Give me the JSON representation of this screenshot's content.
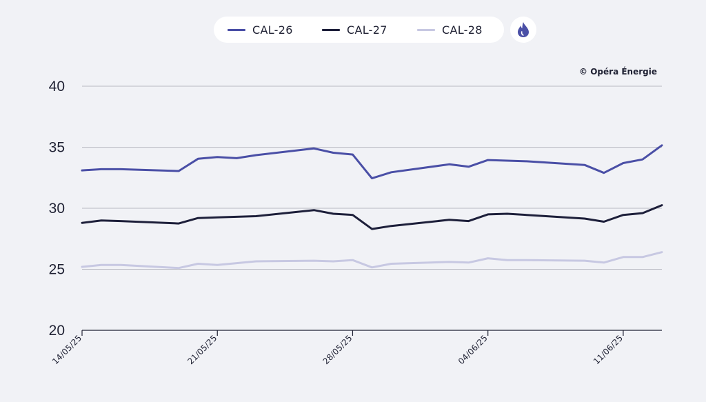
{
  "legend": {
    "items": [
      {
        "label": "CAL-26",
        "color": "#4a4fa6"
      },
      {
        "label": "CAL-27",
        "color": "#1d1f3a"
      },
      {
        "label": "CAL-28",
        "color": "#c7c8e2"
      }
    ],
    "fuel_icon": "flame-icon"
  },
  "copyright": "© Opéra Énergie",
  "chart_data": {
    "type": "line",
    "x": [
      "14/05/25",
      "15/05/25",
      "16/05/25",
      "19/05/25",
      "20/05/25",
      "21/05/25",
      "22/05/25",
      "23/05/25",
      "26/05/25",
      "27/05/25",
      "28/05/25",
      "29/05/25",
      "30/05/25",
      "02/06/25",
      "03/06/25",
      "04/06/25",
      "05/06/25",
      "06/06/25",
      "09/06/25",
      "10/06/25",
      "11/06/25",
      "12/06/25",
      "13/06/25"
    ],
    "x_day_offsets": [
      0,
      1,
      2,
      5,
      6,
      7,
      8,
      9,
      12,
      13,
      14,
      15,
      16,
      19,
      20,
      21,
      22,
      23,
      26,
      27,
      28,
      29,
      30
    ],
    "xticks": [
      "14/05/25",
      "21/05/25",
      "28/05/25",
      "04/06/25",
      "11/06/25"
    ],
    "xtick_day_offsets": [
      0,
      7,
      14,
      21,
      28
    ],
    "series": [
      {
        "name": "CAL-26",
        "color": "#4a4fa6",
        "values": [
          33.1,
          33.2,
          33.2,
          33.05,
          34.05,
          34.2,
          34.1,
          34.35,
          34.9,
          34.55,
          34.4,
          32.45,
          32.95,
          33.6,
          33.4,
          33.95,
          33.9,
          33.85,
          33.55,
          32.9,
          33.7,
          34.0,
          35.15
        ]
      },
      {
        "name": "CAL-27",
        "color": "#1d1f3a",
        "values": [
          28.8,
          29.0,
          28.95,
          28.75,
          29.2,
          29.25,
          29.3,
          29.35,
          29.85,
          29.55,
          29.45,
          28.3,
          28.55,
          29.05,
          28.95,
          29.5,
          29.55,
          29.45,
          29.15,
          28.9,
          29.45,
          29.6,
          30.25
        ]
      },
      {
        "name": "CAL-28",
        "color": "#c7c8e2",
        "values": [
          25.2,
          25.35,
          25.35,
          25.1,
          25.45,
          25.35,
          25.5,
          25.65,
          25.7,
          25.65,
          25.75,
          25.15,
          25.45,
          25.6,
          25.55,
          25.9,
          25.75,
          25.75,
          25.7,
          25.55,
          26.0,
          26.0,
          26.4
        ]
      }
    ],
    "yticks": [
      20,
      25,
      30,
      35,
      40
    ],
    "ylim": [
      20,
      40
    ],
    "grid": true,
    "legend_position": "top-center"
  }
}
